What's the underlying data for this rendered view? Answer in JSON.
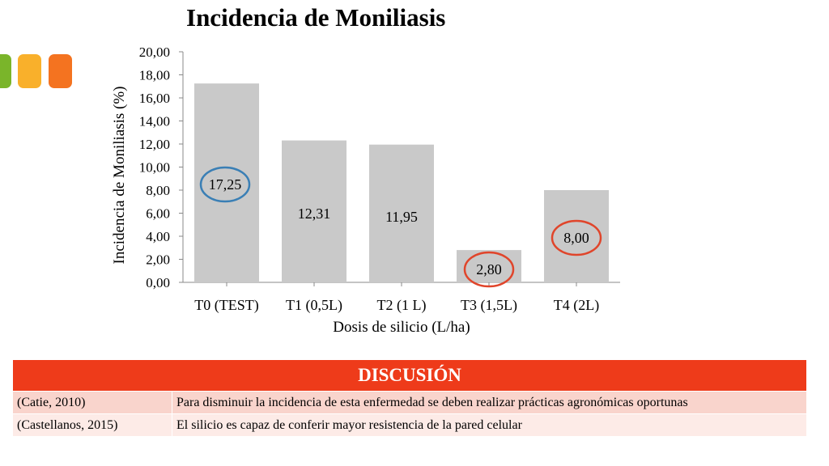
{
  "chart_data": {
    "type": "bar",
    "title": "Incidencia de Moniliasis",
    "xlabel": "Dosis de silicio (L/ha)",
    "ylabel": "Incidencia de Moniliasis (%)",
    "categories": [
      "T0 (TEST)",
      "T1 (0,5L)",
      "T2 (1 L)",
      "T3 (1,5L)",
      "T4 (2L)"
    ],
    "values": [
      17.25,
      12.31,
      11.95,
      2.8,
      8.0
    ],
    "value_labels": [
      "17,25",
      "12,31",
      "11,95",
      "2,80",
      "8,00"
    ],
    "y_ticks": [
      "0,00",
      "2,00",
      "4,00",
      "6,00",
      "8,00",
      "10,00",
      "12,00",
      "14,00",
      "16,00",
      "18,00",
      "20,00"
    ],
    "ylim": [
      0,
      20
    ],
    "grid": false,
    "bar_color": "#c9c9c9",
    "highlight_circles": [
      {
        "category": "T0 (TEST)",
        "color": "#3a7fb5"
      },
      {
        "category": "T3 (1,5L)",
        "color": "#e0452b"
      },
      {
        "category": "T4 (2L)",
        "color": "#e0452b"
      }
    ]
  },
  "discussion": {
    "header": "DISCUSIÓN",
    "header_color": "#ee3b1a",
    "rows": [
      {
        "source": "(Catie, 2010)",
        "text": "Para disminuir la incidencia de esta enfermedad se deben realizar prácticas agronómicas oportunas"
      },
      {
        "source": "(Castellanos, 2015)",
        "text": "El silicio es capaz de conferir mayor resistencia de la pared celular"
      }
    ]
  },
  "decoration": {
    "tile_colors": [
      "#7ab52a",
      "#f9b02b",
      "#f47320"
    ]
  }
}
